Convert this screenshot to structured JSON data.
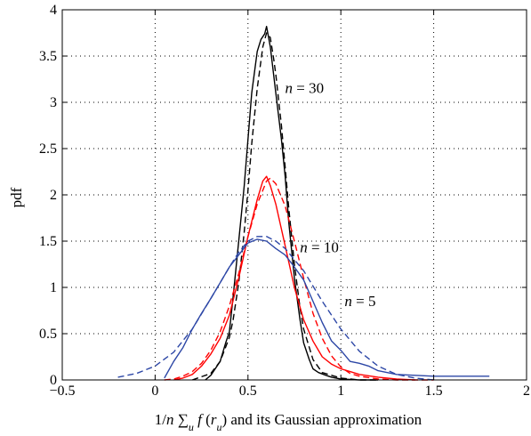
{
  "chart_data": {
    "type": "line",
    "xlim": [
      -0.5,
      2
    ],
    "ylim": [
      0,
      4
    ],
    "xticks": [
      -0.5,
      0,
      0.5,
      1,
      1.5,
      2
    ],
    "xtick_labels": [
      "−0.5",
      "0",
      "0.5",
      "1",
      "1.5",
      "2"
    ],
    "yticks": [
      0,
      0.5,
      1,
      1.5,
      2,
      2.5,
      3,
      3.5,
      4
    ],
    "ytick_labels": [
      "0",
      "0.5",
      "1",
      "1.5",
      "2",
      "2.5",
      "3",
      "3.5",
      "4"
    ],
    "ylabel": "pdf",
    "xlabel": {
      "prefix": "1/",
      "n": "n",
      "sum": " ∑",
      "sub_u": "u",
      "f": " f",
      "open": " (",
      "r": "r",
      "sub_u2": "u",
      "close": ")",
      "suffix": " and its Gaussian approximation"
    },
    "grid": true,
    "grid_style": "dotted",
    "annotations": [
      {
        "n": "n",
        "eq": " = 30",
        "x": 0.7,
        "y": 3.1
      },
      {
        "n": "n",
        "eq": " = 10",
        "x": 0.78,
        "y": 1.38
      },
      {
        "n": "n",
        "eq": " = 5",
        "x": 1.02,
        "y": 0.8
      }
    ],
    "series": [
      {
        "style": "solid",
        "color": "#000000",
        "x": [
          0.27,
          0.3,
          0.35,
          0.38,
          0.4,
          0.42,
          0.45,
          0.48,
          0.5,
          0.52,
          0.55,
          0.57,
          0.59,
          0.6,
          0.62,
          0.65,
          0.68,
          0.7,
          0.72,
          0.75,
          0.78,
          0.8,
          0.83,
          0.85,
          0.88,
          0.92,
          0.95,
          1.0,
          1.1,
          1.2
        ],
        "y": [
          0.0,
          0.05,
          0.2,
          0.4,
          0.52,
          0.9,
          1.5,
          2.1,
          2.6,
          3.1,
          3.55,
          3.68,
          3.74,
          3.82,
          3.6,
          3.1,
          2.6,
          2.2,
          1.7,
          1.1,
          0.65,
          0.4,
          0.22,
          0.12,
          0.08,
          0.05,
          0.03,
          0.01,
          0.0,
          0.0
        ]
      },
      {
        "style": "dashed",
        "color": "#000000",
        "x": [
          0.2,
          0.3,
          0.35,
          0.4,
          0.42,
          0.45,
          0.48,
          0.5,
          0.52,
          0.55,
          0.58,
          0.6,
          0.62,
          0.64,
          0.65,
          0.68,
          0.7,
          0.72,
          0.75,
          0.78,
          0.8,
          0.85,
          0.9,
          1.0,
          1.1,
          1.2
        ],
        "y": [
          0.0,
          0.07,
          0.2,
          0.46,
          0.65,
          1.05,
          1.6,
          2.05,
          2.55,
          3.15,
          3.6,
          3.75,
          3.7,
          3.45,
          3.3,
          2.75,
          2.3,
          1.85,
          1.25,
          0.78,
          0.55,
          0.22,
          0.08,
          0.02,
          0.0,
          0.0
        ]
      },
      {
        "style": "solid",
        "color": "#ff0000",
        "x": [
          0.1,
          0.15,
          0.2,
          0.25,
          0.3,
          0.35,
          0.4,
          0.45,
          0.5,
          0.55,
          0.58,
          0.6,
          0.62,
          0.65,
          0.7,
          0.75,
          0.8,
          0.85,
          0.9,
          0.95,
          1.0,
          1.05,
          1.1,
          1.2,
          1.3,
          1.4
        ],
        "y": [
          0.0,
          0.02,
          0.06,
          0.15,
          0.28,
          0.45,
          0.7,
          1.1,
          1.55,
          1.95,
          2.15,
          2.2,
          2.1,
          1.9,
          1.45,
          1.0,
          0.65,
          0.42,
          0.25,
          0.17,
          0.12,
          0.09,
          0.06,
          0.03,
          0.01,
          0.0
        ]
      },
      {
        "style": "dashed",
        "color": "#ff0000",
        "x": [
          0.05,
          0.1,
          0.15,
          0.2,
          0.25,
          0.3,
          0.35,
          0.4,
          0.45,
          0.5,
          0.55,
          0.6,
          0.62,
          0.65,
          0.7,
          0.75,
          0.8,
          0.85,
          0.9,
          0.95,
          1.0,
          1.05,
          1.1,
          1.2,
          1.3,
          1.4,
          1.5
        ],
        "y": [
          0.0,
          0.01,
          0.04,
          0.09,
          0.18,
          0.32,
          0.52,
          0.8,
          1.15,
          1.55,
          1.9,
          2.15,
          2.18,
          2.12,
          1.88,
          1.5,
          1.1,
          0.72,
          0.45,
          0.26,
          0.14,
          0.07,
          0.04,
          0.01,
          0.0,
          0.0,
          0.0
        ]
      },
      {
        "style": "solid",
        "color": "#2d47a6",
        "x": [
          0.05,
          0.1,
          0.15,
          0.2,
          0.25,
          0.3,
          0.35,
          0.4,
          0.45,
          0.5,
          0.55,
          0.6,
          0.65,
          0.7,
          0.75,
          0.8,
          0.85,
          0.9,
          0.95,
          1.0,
          1.05,
          1.1,
          1.15,
          1.2,
          1.3,
          1.4,
          1.5,
          1.6,
          1.7,
          1.8
        ],
        "y": [
          0.02,
          0.2,
          0.35,
          0.55,
          0.72,
          0.88,
          1.05,
          1.22,
          1.35,
          1.48,
          1.52,
          1.5,
          1.42,
          1.35,
          1.22,
          1.08,
          0.85,
          0.62,
          0.42,
          0.32,
          0.2,
          0.18,
          0.15,
          0.1,
          0.06,
          0.05,
          0.04,
          0.04,
          0.04,
          0.04
        ]
      },
      {
        "style": "dashed",
        "color": "#2d47a6",
        "x": [
          -0.2,
          -0.1,
          0.0,
          0.1,
          0.2,
          0.3,
          0.4,
          0.45,
          0.5,
          0.55,
          0.6,
          0.65,
          0.7,
          0.8,
          0.9,
          1.0,
          1.1,
          1.2,
          1.3,
          1.4,
          1.5
        ],
        "y": [
          0.03,
          0.07,
          0.15,
          0.3,
          0.55,
          0.88,
          1.22,
          1.38,
          1.5,
          1.55,
          1.55,
          1.5,
          1.42,
          1.18,
          0.85,
          0.55,
          0.31,
          0.15,
          0.06,
          0.02,
          0.0
        ]
      }
    ]
  }
}
